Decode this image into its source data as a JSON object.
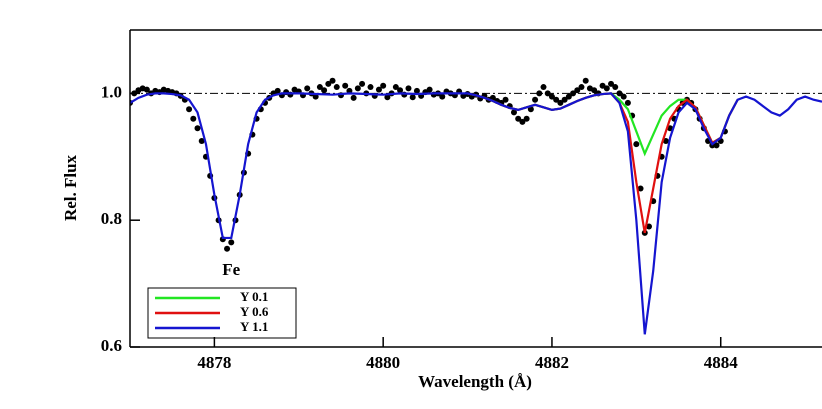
{
  "chart_data": {
    "type": "line",
    "xlabel": "Wavelength (Å)",
    "ylabel": "Rel. Flux",
    "annotation": "Fe",
    "annotation_x": 4878.2,
    "annotation_y": 0.72,
    "xlim": [
      4877,
      4885.2
    ],
    "ylim": [
      0.6,
      1.1
    ],
    "xticks": [
      4878,
      4880,
      4882,
      4884
    ],
    "yticks": [
      0.6,
      0.8,
      {
        "value": 1,
        "label": "1.0"
      }
    ],
    "reference_line": 1,
    "legend": "lower left",
    "series": [
      {
        "name": "Y 0.1",
        "color": "#22e622",
        "x": [
          4881,
          4881.1,
          4881.2,
          4881.3,
          4881.4,
          4881.5,
          4881.6,
          4881.7,
          4881.8,
          4881.9,
          4882,
          4882.1,
          4882.2,
          4882.3,
          4882.4,
          4882.5,
          4882.6,
          4882.7,
          4882.8,
          4882.9,
          4883,
          4883.1,
          4883.2,
          4883.3,
          4883.4,
          4883.5,
          4883.6,
          4883.7,
          4883.8,
          4883.9,
          4884,
          4884.1,
          4884.2
        ],
        "values": [
          1,
          0.997,
          0.993,
          0.988,
          0.982,
          0.977,
          0.974,
          0.978,
          0.982,
          0.978,
          0.974,
          0.976,
          0.982,
          0.988,
          0.993,
          0.997,
          0.999,
          1,
          0.99,
          0.975,
          0.94,
          0.905,
          0.935,
          0.965,
          0.98,
          0.99,
          0.99,
          0.978,
          0.95,
          0.922,
          0.93,
          0.965,
          0.99
        ]
      },
      {
        "name": "Y 0.6",
        "color": "#e01010",
        "x": [
          4881,
          4881.1,
          4881.2,
          4881.3,
          4881.4,
          4881.5,
          4881.6,
          4881.7,
          4881.8,
          4881.9,
          4882,
          4882.1,
          4882.2,
          4882.3,
          4882.4,
          4882.5,
          4882.6,
          4882.7,
          4882.8,
          4882.9,
          4883,
          4883.1,
          4883.2,
          4883.3,
          4883.4,
          4883.5,
          4883.6,
          4883.7,
          4883.8,
          4883.9,
          4884,
          4884.1,
          4884.2
        ],
        "values": [
          1,
          0.997,
          0.993,
          0.988,
          0.982,
          0.977,
          0.974,
          0.978,
          0.982,
          0.978,
          0.974,
          0.976,
          0.982,
          0.988,
          0.993,
          0.997,
          0.999,
          1,
          0.985,
          0.955,
          0.86,
          0.78,
          0.85,
          0.92,
          0.96,
          0.98,
          0.99,
          0.978,
          0.95,
          0.922,
          0.93,
          0.965,
          0.99
        ]
      },
      {
        "name": "Y 1.1",
        "color": "#1515d0",
        "x": [
          4877,
          4877.1,
          4877.2,
          4877.3,
          4877.4,
          4877.5,
          4877.6,
          4877.7,
          4877.8,
          4877.9,
          4878,
          4878.1,
          4878.2,
          4878.3,
          4878.4,
          4878.5,
          4878.6,
          4878.7,
          4878.8,
          4878.9,
          4879,
          4879.2,
          4879.4,
          4879.6,
          4879.8,
          4880,
          4880.2,
          4880.4,
          4880.6,
          4880.8,
          4881,
          4881.1,
          4881.2,
          4881.3,
          4881.4,
          4881.5,
          4881.6,
          4881.7,
          4881.8,
          4881.9,
          4882,
          4882.1,
          4882.2,
          4882.3,
          4882.4,
          4882.5,
          4882.6,
          4882.7,
          4882.8,
          4882.9,
          4883,
          4883.1,
          4883.2,
          4883.3,
          4883.4,
          4883.5,
          4883.6,
          4883.7,
          4883.8,
          4883.9,
          4884,
          4884.1,
          4884.2,
          4884.3,
          4884.4,
          4884.5,
          4884.6,
          4884.7,
          4884.8,
          4884.9,
          4885,
          4885.1,
          4885.2
        ],
        "values": [
          0.985,
          0.993,
          0.998,
          1,
          1,
          0.999,
          0.997,
          0.99,
          0.97,
          0.92,
          0.84,
          0.772,
          0.772,
          0.84,
          0.92,
          0.97,
          0.99,
          0.997,
          1,
          1,
          1,
          0.999,
          0.998,
          1,
          0.999,
          0.998,
          1,
          0.999,
          1,
          1,
          1,
          0.997,
          0.993,
          0.988,
          0.982,
          0.977,
          0.974,
          0.978,
          0.982,
          0.978,
          0.974,
          0.976,
          0.982,
          0.988,
          0.993,
          0.997,
          0.999,
          1,
          0.985,
          0.94,
          0.8,
          0.62,
          0.72,
          0.86,
          0.93,
          0.97,
          0.985,
          0.975,
          0.945,
          0.92,
          0.93,
          0.965,
          0.99,
          0.995,
          0.99,
          0.98,
          0.97,
          0.965,
          0.975,
          0.99,
          0.995,
          0.99,
          0.987
        ]
      }
    ],
    "points": {
      "color": "#000000",
      "x": [
        4877,
        4877.05,
        4877.1,
        4877.15,
        4877.2,
        4877.25,
        4877.3,
        4877.35,
        4877.4,
        4877.45,
        4877.5,
        4877.55,
        4877.6,
        4877.65,
        4877.7,
        4877.75,
        4877.8,
        4877.85,
        4877.9,
        4877.95,
        4878,
        4878.05,
        4878.1,
        4878.15,
        4878.2,
        4878.25,
        4878.3,
        4878.35,
        4878.4,
        4878.45,
        4878.5,
        4878.55,
        4878.6,
        4878.65,
        4878.7,
        4878.75,
        4878.8,
        4878.85,
        4878.9,
        4878.95,
        4879,
        4879.05,
        4879.1,
        4879.15,
        4879.2,
        4879.25,
        4879.3,
        4879.35,
        4879.4,
        4879.45,
        4879.5,
        4879.55,
        4879.6,
        4879.65,
        4879.7,
        4879.75,
        4879.8,
        4879.85,
        4879.9,
        4879.95,
        4880,
        4880.05,
        4880.1,
        4880.15,
        4880.2,
        4880.25,
        4880.3,
        4880.35,
        4880.4,
        4880.45,
        4880.5,
        4880.55,
        4880.6,
        4880.65,
        4880.7,
        4880.75,
        4880.8,
        4880.85,
        4880.9,
        4880.95,
        4881,
        4881.05,
        4881.1,
        4881.15,
        4881.2,
        4881.25,
        4881.3,
        4881.35,
        4881.4,
        4881.45,
        4881.5,
        4881.55,
        4881.6,
        4881.65,
        4881.7,
        4881.75,
        4881.8,
        4881.85,
        4881.9,
        4881.95,
        4882,
        4882.05,
        4882.1,
        4882.15,
        4882.2,
        4882.25,
        4882.3,
        4882.35,
        4882.4,
        4882.45,
        4882.5,
        4882.55,
        4882.6,
        4882.65,
        4882.7,
        4882.75,
        4882.8,
        4882.85,
        4882.9,
        4882.95,
        4883,
        4883.05,
        4883.1,
        4883.15,
        4883.2,
        4883.25,
        4883.3,
        4883.35,
        4883.4,
        4883.45,
        4883.5,
        4883.55,
        4883.6,
        4883.65,
        4883.7,
        4883.75,
        4883.8,
        4883.85,
        4883.9,
        4883.95,
        4884,
        4884.05
      ],
      "values": [
        0.985,
        1,
        1.005,
        1.008,
        1.006,
        1,
        1.004,
        1.002,
        1.006,
        1.004,
        1.002,
        1,
        0.996,
        0.99,
        0.975,
        0.96,
        0.945,
        0.925,
        0.9,
        0.87,
        0.835,
        0.8,
        0.77,
        0.755,
        0.765,
        0.8,
        0.84,
        0.875,
        0.905,
        0.935,
        0.96,
        0.975,
        0.985,
        0.993,
        1,
        1.004,
        0.997,
        1.002,
        0.998,
        1.006,
        1.003,
        0.997,
        1.008,
        1,
        0.995,
        1.01,
        1.005,
        1.015,
        1.02,
        1.01,
        0.997,
        1.012,
        1.004,
        0.993,
        1.008,
        1.015,
        1,
        1.01,
        0.996,
        1.006,
        1.012,
        0.994,
        1,
        1.01,
        1.005,
        0.998,
        1.008,
        0.994,
        1.004,
        0.996,
        1.002,
        1.006,
        0.998,
        1,
        0.995,
        1.003,
        1,
        0.997,
        1.003,
        0.996,
        0.999,
        0.995,
        0.998,
        0.992,
        0.996,
        0.99,
        0.993,
        0.988,
        0.985,
        0.99,
        0.98,
        0.97,
        0.96,
        0.955,
        0.96,
        0.975,
        0.99,
        1,
        1.01,
        1,
        0.995,
        0.99,
        0.985,
        0.99,
        0.995,
        1,
        1.005,
        1.01,
        1.02,
        1.008,
        1.005,
        1,
        1.012,
        1.008,
        1.015,
        1.01,
        1,
        0.995,
        0.985,
        0.965,
        0.92,
        0.85,
        0.78,
        0.79,
        0.83,
        0.87,
        0.9,
        0.925,
        0.945,
        0.96,
        0.975,
        0.985,
        0.99,
        0.985,
        0.975,
        0.96,
        0.945,
        0.925,
        0.918,
        0.918,
        0.925,
        0.94
      ]
    }
  }
}
